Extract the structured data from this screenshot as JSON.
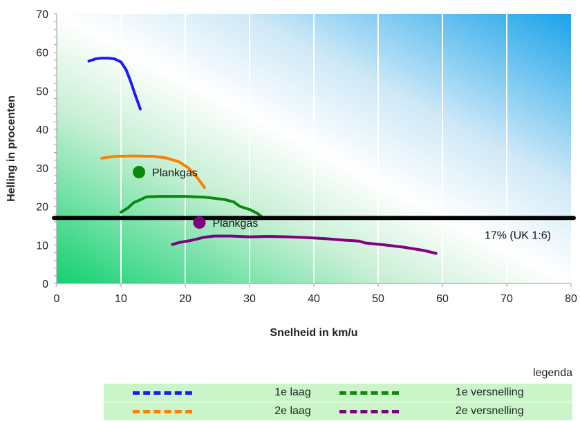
{
  "chart_data": {
    "type": "line",
    "title": "",
    "xlabel": "Snelheid in km/u",
    "ylabel": "Helling in procenten",
    "xlim": [
      0,
      80
    ],
    "ylim": [
      0,
      70
    ],
    "xticks": [
      "0",
      "10",
      "20",
      "30",
      "40",
      "50",
      "60",
      "70",
      "80"
    ],
    "yticks": [
      "0",
      "10",
      "20",
      "30",
      "40",
      "50",
      "60",
      "70"
    ],
    "grid": "vertical",
    "series": [
      {
        "name": "1e laag",
        "color": "#1a1aff",
        "points": [
          [
            5,
            57.7
          ],
          [
            6,
            58.3
          ],
          [
            7,
            58.5
          ],
          [
            8,
            58.5
          ],
          [
            9,
            58.3
          ],
          [
            10,
            57.5
          ],
          [
            10.8,
            55.5
          ],
          [
            11.5,
            52.5
          ],
          [
            12.2,
            49
          ],
          [
            13,
            45.3
          ]
        ]
      },
      {
        "name": "2e laag",
        "color": "#ff7f00",
        "points": [
          [
            7,
            32.5
          ],
          [
            9,
            33
          ],
          [
            12,
            33.1
          ],
          [
            15,
            33
          ],
          [
            17,
            32.6
          ],
          [
            19,
            31.6
          ],
          [
            20.5,
            30
          ],
          [
            21.5,
            28.2
          ],
          [
            22.3,
            26.5
          ],
          [
            23,
            24.9
          ]
        ]
      },
      {
        "name": "1e versnelling",
        "color": "#0a8a0a",
        "points": [
          [
            10,
            18.5
          ],
          [
            11,
            19.5
          ],
          [
            12,
            21
          ],
          [
            13,
            21.7
          ],
          [
            14,
            22.5
          ],
          [
            16,
            22.6
          ],
          [
            20,
            22.6
          ],
          [
            23,
            22.4
          ],
          [
            26,
            21.8
          ],
          [
            27.5,
            21.2
          ],
          [
            28.5,
            20
          ],
          [
            30,
            19.2
          ],
          [
            31.2,
            18.2
          ],
          [
            32,
            17.2
          ]
        ]
      },
      {
        "name": "2e versnelling",
        "color": "#800080",
        "points": [
          [
            18,
            10.1
          ],
          [
            19,
            10.6
          ],
          [
            21,
            11.2
          ],
          [
            23,
            12
          ],
          [
            24.5,
            12.3
          ],
          [
            27,
            12.3
          ],
          [
            30,
            12.1
          ],
          [
            33,
            12.2
          ],
          [
            36,
            12.1
          ],
          [
            39,
            11.9
          ],
          [
            42,
            11.6
          ],
          [
            45,
            11.2
          ],
          [
            47,
            11
          ],
          [
            48,
            10.5
          ],
          [
            51,
            10
          ],
          [
            54,
            9.4
          ],
          [
            57,
            8.6
          ],
          [
            59,
            7.8
          ]
        ]
      }
    ],
    "reference_line": {
      "y": 17,
      "label": "17% (UK 1:6)",
      "color": "#000000"
    },
    "annotations": [
      {
        "label": "Plankgas",
        "x": 12.8,
        "y": 28.9,
        "color": "#0a8a0a"
      },
      {
        "label": "Plankgas",
        "x": 22.2,
        "y": 15.8,
        "color": "#800080"
      }
    ],
    "legend": {
      "title": "legenda",
      "placement": "bottom-right",
      "entries": [
        {
          "name": "1e laag",
          "color": "#1a1aff"
        },
        {
          "name": "1e versnelling",
          "color": "#0a8a0a"
        },
        {
          "name": "2e laag",
          "color": "#ff7f00"
        },
        {
          "name": "2e versnelling",
          "color": "#800080"
        }
      ]
    }
  }
}
